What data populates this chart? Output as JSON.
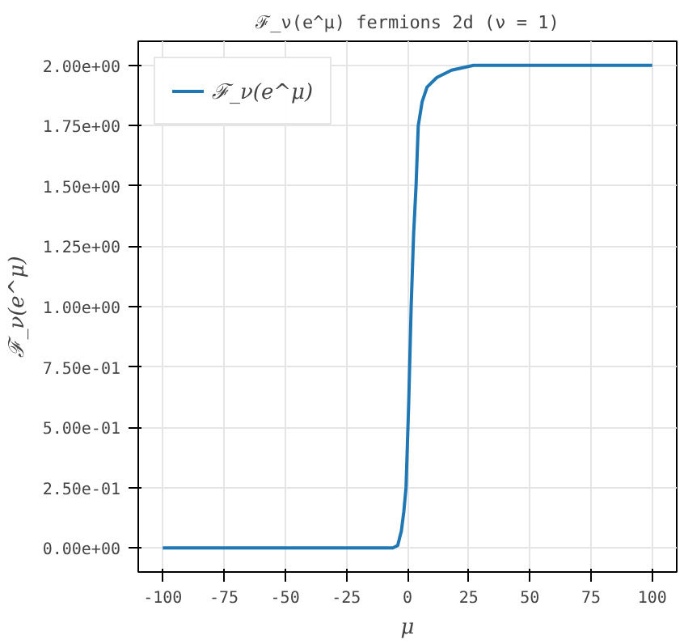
{
  "chart_data": {
    "type": "line",
    "title": "ℱ_ν(e^μ) fermions 2d (ν = 1)",
    "xlabel": "μ",
    "ylabel": "ℱ_ν(e^μ)",
    "x": [
      -100,
      -6,
      -4,
      -2.5,
      -1.5,
      -0.6,
      0.5,
      1.5,
      2.5,
      3.5,
      4.4,
      6,
      8,
      12,
      18,
      27,
      50,
      100
    ],
    "series": [
      {
        "name": "ℱ_ν(e^μ)",
        "color": "#1f77b4",
        "values": [
          0,
          0,
          0.01,
          0.07,
          0.15,
          0.25,
          0.6,
          1.0,
          1.3,
          1.5,
          1.75,
          1.85,
          1.91,
          1.95,
          1.98,
          2.0,
          2.0,
          2.0
        ]
      }
    ],
    "xlim": [
      -110,
      110
    ],
    "ylim": [
      -0.1,
      2.1
    ],
    "xticks": [
      -100,
      -75,
      -50,
      -25,
      0,
      25,
      50,
      75,
      100
    ],
    "yticks": [
      {
        "value": 0,
        "label": "0.00e+00"
      },
      {
        "value": 0.25,
        "label": "2.50e-01"
      },
      {
        "value": 0.5,
        "label": "5.00e-01"
      },
      {
        "value": 0.75,
        "label": "7.50e-01"
      },
      {
        "value": 1.0,
        "label": "1.00e+00"
      },
      {
        "value": 1.25,
        "label": "1.25e+00"
      },
      {
        "value": 1.5,
        "label": "1.50e+00"
      },
      {
        "value": 1.75,
        "label": "1.75e+00"
      },
      {
        "value": 2.0,
        "label": "2.00e+00"
      }
    ],
    "grid": true,
    "legend": "top left",
    "line_style": "solid",
    "marker": "none"
  }
}
